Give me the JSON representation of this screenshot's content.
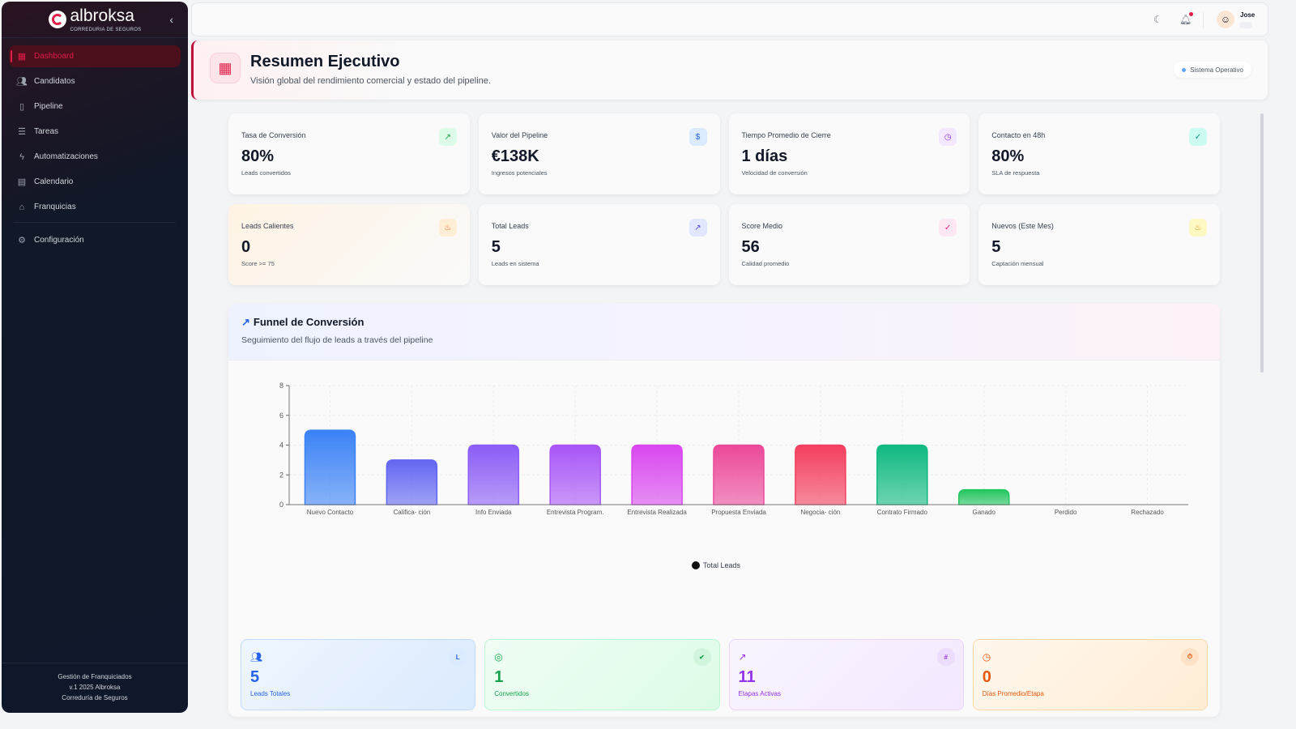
{
  "brand": {
    "name": "albroksa",
    "tagline": "CORREDURIA DE SEGUROS"
  },
  "sidebar": {
    "items": [
      {
        "label": "Dashboard",
        "icon": "grid-icon",
        "active": true
      },
      {
        "label": "Candidatos",
        "icon": "users-icon"
      },
      {
        "label": "Pipeline",
        "icon": "columns-icon"
      },
      {
        "label": "Tareas",
        "icon": "checklist-icon"
      },
      {
        "label": "Automatizaciones",
        "icon": "bolt-icon"
      },
      {
        "label": "Calendario",
        "icon": "calendar-icon"
      },
      {
        "label": "Franquicias",
        "icon": "store-icon"
      }
    ],
    "settings": "Configuración",
    "footer": [
      "Gestión de Franquiciados",
      "v.1 2025 Albroksa",
      "Correduría de Seguros"
    ]
  },
  "topbar": {
    "user": "Jose"
  },
  "header": {
    "title": "Resumen Ejecutivo",
    "subtitle": "Visión global del rendimiento comercial y estado del pipeline.",
    "status": "Sistema Operativo"
  },
  "kpis": [
    {
      "label": "Tasa de Conversión",
      "value": "80%",
      "sub": "Leads convertidos",
      "icon": "trending-up-icon",
      "color": "#16a34a",
      "bg": "#dcfce7"
    },
    {
      "label": "Valor del Pipeline",
      "value": "€138K",
      "sub": "Ingresos potenciales",
      "icon": "dollar-icon",
      "color": "#2563eb",
      "bg": "#dbeafe"
    },
    {
      "label": "Tiempo Promedio de Cierre",
      "value": "1 días",
      "sub": "Velocidad de conversión",
      "icon": "clock-icon",
      "color": "#9333ea",
      "bg": "#f3e8ff"
    },
    {
      "label": "Contacto en 48h",
      "value": "80%",
      "sub": "SLA de respuesta",
      "icon": "check-circle-icon",
      "color": "#0d9488",
      "bg": "#ccfbf1"
    },
    {
      "label": "Leads Calientes",
      "value": "0",
      "sub": "Score >= 75",
      "icon": "flame-icon",
      "color": "#ea580c",
      "bg": "#ffedd5"
    },
    {
      "label": "Total Leads",
      "value": "5",
      "sub": "Leads en sistema",
      "icon": "trending-up-icon",
      "color": "#4f46e5",
      "bg": "#e0e7ff"
    },
    {
      "label": "Score Medio",
      "value": "56",
      "sub": "Calidad promedio",
      "icon": "check-circle-icon",
      "color": "#db2777",
      "bg": "#fce7f3"
    },
    {
      "label": "Nuevos (Este Mes)",
      "value": "5",
      "sub": "Captación mensual",
      "icon": "flame-icon",
      "color": "#ca8a04",
      "bg": "#fef9c3"
    }
  ],
  "funnel": {
    "title": "Funnel de Conversión",
    "subtitle": "Seguimiento del flujo de leads a través del pipeline"
  },
  "chart_data": {
    "type": "bar",
    "title": "Funnel de Conversión",
    "categories": [
      "Nuevo Contacto",
      "Califica- ción",
      "Info Enviada",
      "Entrevista Program.",
      "Entrevista Realizada",
      "Propuesta Enviada",
      "Negocia- ción",
      "Contrato Firmado",
      "Ganado",
      "Perdido",
      "Rechazado"
    ],
    "series": [
      {
        "name": "Total Leads",
        "values": [
          5,
          3,
          4,
          4,
          4,
          4,
          4,
          4,
          1,
          0,
          0
        ]
      }
    ],
    "colors": [
      "#3b82f6",
      "#6366f1",
      "#8b5cf6",
      "#a855f7",
      "#d946ef",
      "#ec4899",
      "#f43f5e",
      "#10b981",
      "#22c55e",
      "#64748b",
      "#6b7280"
    ],
    "yticks": [
      "0",
      "2",
      "4",
      "6",
      "8"
    ],
    "ylim": [
      0,
      8
    ],
    "grid": true,
    "legend": "bottom"
  },
  "stats": [
    {
      "value": "5",
      "label": "Leads Totales",
      "badge": "L",
      "icon": "users-icon",
      "color": "#2563eb",
      "bg": "linear-gradient(135deg,#eff6ff,#dbeafe)",
      "border": "#bfdbfe",
      "badgeBg": "#dbeafe"
    },
    {
      "value": "1",
      "label": "Convertidos",
      "badge": "✔",
      "icon": "target-icon",
      "color": "#16a34a",
      "bg": "linear-gradient(135deg,#f0fdf4,#dcfce7)",
      "border": "#bbf7d0",
      "badgeBg": "#d1f5dc"
    },
    {
      "value": "11",
      "label": "Etapas Activas",
      "badge": "#",
      "icon": "trending-up-icon",
      "color": "#9333ea",
      "bg": "linear-gradient(135deg,#faf5ff,#f3e8ff)",
      "border": "#e9d5ff",
      "badgeBg": "#ecdcfd"
    },
    {
      "value": "0",
      "label": "Días Promedio/Etapa",
      "badge": "⏱",
      "icon": "clock-icon",
      "color": "#ea580c",
      "bg": "linear-gradient(135deg,#fff7ed,#ffedd5)",
      "border": "#fed7aa",
      "badgeBg": "#fde2c8"
    }
  ]
}
